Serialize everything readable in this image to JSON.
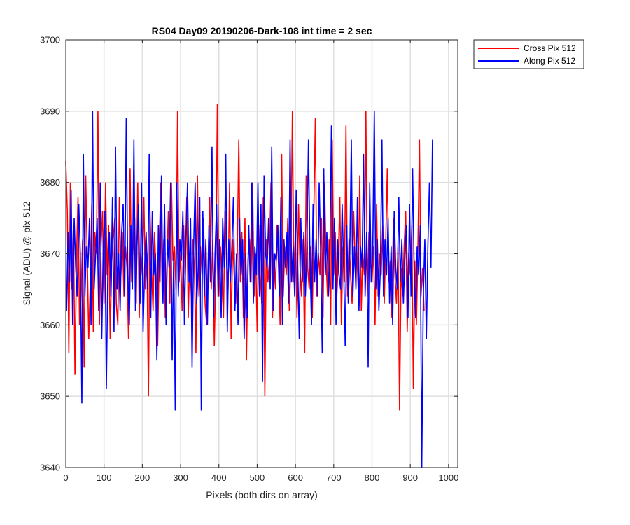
{
  "chart_data": {
    "type": "line",
    "title": "RS04 Day09 20190206-Dark-108 int time = 2 sec",
    "xlabel": "Pixels (both dirs on array)",
    "ylabel": "Signal (ADU) @ pix 512",
    "xlim": [
      0,
      1024
    ],
    "ylim": [
      3640,
      3700
    ],
    "xticks": [
      0,
      100,
      200,
      300,
      400,
      500,
      600,
      700,
      800,
      900,
      1000
    ],
    "yticks": [
      3640,
      3650,
      3660,
      3670,
      3680,
      3690,
      3700
    ],
    "grid": true,
    "legend_position": "outside-top-right",
    "series": [
      {
        "name": "Cross Pix 512",
        "color": "#ff0000",
        "x_start": 0,
        "x_step": 4,
        "values": [
          3683,
          3676,
          3656,
          3680,
          3665,
          3674,
          3653,
          3669,
          3678,
          3660,
          3664,
          3672,
          3654,
          3681,
          3670,
          3658,
          3666,
          3677,
          3659,
          3673,
          3670,
          3690,
          3660,
          3671,
          3676,
          3663,
          3680,
          3667,
          3674,
          3658,
          3669,
          3672,
          3675,
          3663,
          3660,
          3678,
          3667,
          3673,
          3664,
          3671,
          3668,
          3658,
          3682,
          3666,
          3671,
          3675,
          3663,
          3680,
          3661,
          3670,
          3667,
          3678,
          3665,
          3670,
          3650,
          3676,
          3668,
          3662,
          3673,
          3667,
          3657,
          3670,
          3680,
          3664,
          3672,
          3661,
          3668,
          3676,
          3663,
          3680,
          3669,
          3671,
          3665,
          3690,
          3666,
          3670,
          3662,
          3674,
          3667,
          3678,
          3661,
          3670,
          3664,
          3672,
          3668,
          3656,
          3681,
          3664,
          3671,
          3667,
          3675,
          3663,
          3660,
          3669,
          3678,
          3665,
          3672,
          3657,
          3668,
          3691,
          3664,
          3671,
          3667,
          3661,
          3676,
          3669,
          3665,
          3680,
          3658,
          3672,
          3667,
          3663,
          3670,
          3686,
          3666,
          3673,
          3661,
          3675,
          3655,
          3669,
          3672,
          3666,
          3680,
          3664,
          3670,
          3659,
          3674,
          3667,
          3663,
          3678,
          3650,
          3672,
          3666,
          3669,
          3680,
          3661,
          3670,
          3665,
          3674,
          3668,
          3660,
          3684,
          3664,
          3671,
          3667,
          3675,
          3662,
          3669,
          3690,
          3666,
          3673,
          3661,
          3677,
          3668,
          3664,
          3672,
          3656,
          3681,
          3668,
          3665,
          3671,
          3661,
          3676,
          3689,
          3664,
          3670,
          3667,
          3675,
          3661,
          3680,
          3669,
          3664,
          3672,
          3660,
          3686,
          3667,
          3673,
          3664,
          3669,
          3678,
          3660,
          3671,
          3666,
          3688,
          3664,
          3672,
          3667,
          3663,
          3676,
          3669,
          3671,
          3665,
          3681,
          3662,
          3670,
          3667,
          3690,
          3664,
          3673,
          3669,
          3666,
          3671,
          3660,
          3677,
          3664,
          3670,
          3667,
          3674,
          3663,
          3672,
          3682,
          3666,
          3669,
          3661,
          3675,
          3667,
          3663,
          3671,
          3648,
          3668,
          3664,
          3671,
          3676,
          3659,
          3670,
          3667,
          3674,
          3651,
          3669,
          3660,
          3671,
          3686,
          3664,
          3668,
          3662
        ]
      },
      {
        "name": "Along Pix 512",
        "color": "#0000ff",
        "x_start": 2,
        "x_step": 4,
        "values": [
          3662,
          3673,
          3666,
          3679,
          3660,
          3675,
          3668,
          3664,
          3677,
          3670,
          3649,
          3684,
          3664,
          3671,
          3668,
          3675,
          3660,
          3690,
          3665,
          3670,
          3675,
          3662,
          3680,
          3658,
          3671,
          3676,
          3651,
          3668,
          3673,
          3664,
          3678,
          3659,
          3685,
          3665,
          3670,
          3662,
          3673,
          3677,
          3664,
          3689,
          3667,
          3660,
          3674,
          3665,
          3686,
          3662,
          3671,
          3677,
          3663,
          3680,
          3659,
          3668,
          3673,
          3665,
          3684,
          3661,
          3676,
          3667,
          3670,
          3655,
          3674,
          3666,
          3681,
          3663,
          3677,
          3660,
          3672,
          3668,
          3680,
          3655,
          3670,
          3648,
          3680,
          3664,
          3672,
          3669,
          3676,
          3660,
          3672,
          3680,
          3666,
          3675,
          3654,
          3671,
          3680,
          3663,
          3668,
          3678,
          3648,
          3676,
          3664,
          3672,
          3660,
          3674,
          3666,
          3685,
          3661,
          3670,
          3677,
          3664,
          3672,
          3661,
          3675,
          3668,
          3684,
          3659,
          3672,
          3666,
          3671,
          3678,
          3662,
          3670,
          3660,
          3675,
          3667,
          3672,
          3658,
          3670,
          3661,
          3674,
          3666,
          3680,
          3663,
          3671,
          3667,
          3680,
          3664,
          3677,
          3652,
          3681,
          3670,
          3668,
          3675,
          3665,
          3685,
          3662,
          3670,
          3669,
          3674,
          3664,
          3678,
          3660,
          3672,
          3668,
          3673,
          3663,
          3686,
          3666,
          3671,
          3664,
          3679,
          3668,
          3658,
          3675,
          3666,
          3673,
          3664,
          3671,
          3686,
          3669,
          3660,
          3677,
          3666,
          3672,
          3664,
          3680,
          3670,
          3656,
          3682,
          3667,
          3673,
          3664,
          3670,
          3688,
          3665,
          3675,
          3660,
          3672,
          3667,
          3665,
          3677,
          3668,
          3657,
          3674,
          3663,
          3670,
          3686,
          3664,
          3671,
          3665,
          3678,
          3662,
          3671,
          3668,
          3684,
          3664,
          3673,
          3654,
          3680,
          3666,
          3670,
          3690,
          3665,
          3672,
          3662,
          3668,
          3686,
          3664,
          3672,
          3667,
          3675,
          3663,
          3671,
          3660,
          3676,
          3668,
          3665,
          3678,
          3666,
          3672,
          3663,
          3670,
          3674,
          3661,
          3677,
          3664,
          3682,
          3668,
          3661,
          3671,
          3667,
          3674,
          3640,
          3664,
          3672,
          3658,
          3671,
          3680,
          3668,
          3686
        ]
      }
    ]
  }
}
